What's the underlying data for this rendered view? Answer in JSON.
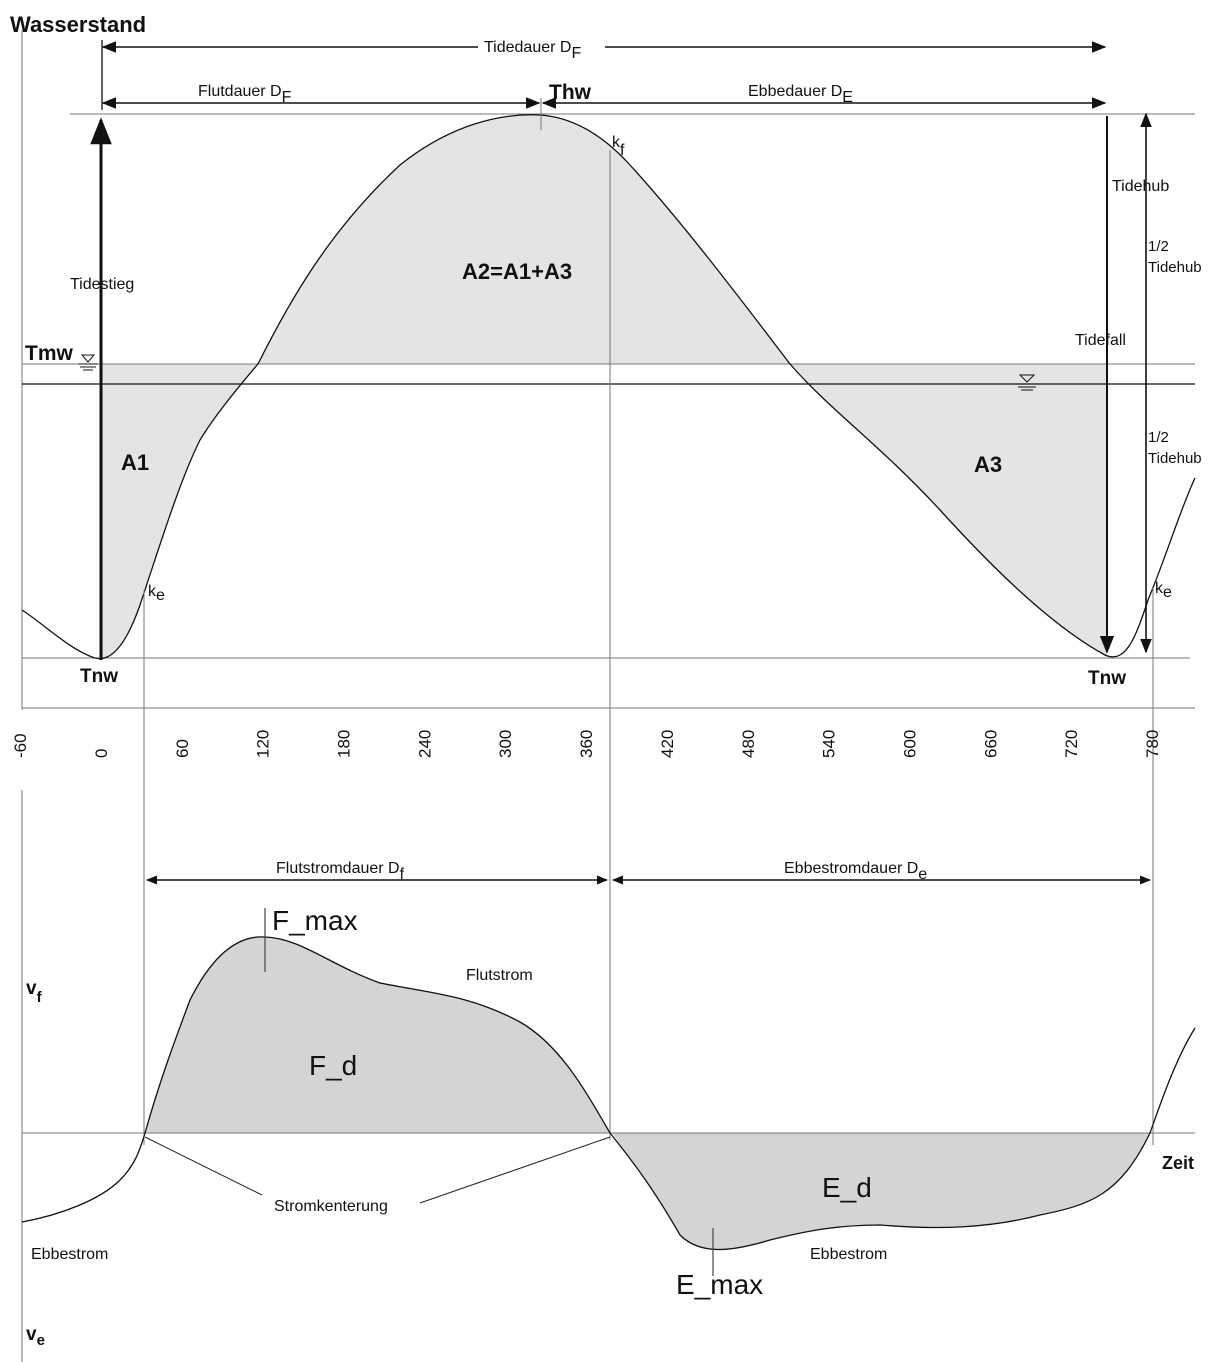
{
  "upper": {
    "title": "Wasserstand",
    "tidedauer": "Tidedauer D",
    "tidedauer_sub": "F",
    "flutdauer": "Flutdauer D",
    "flutdauer_sub": "F",
    "ebbedauer": "Ebbedauer D",
    "ebbedauer_sub": "E",
    "thw": "Thw",
    "kf": "k",
    "kf_sub": "f",
    "ke": "k",
    "ke_sub": "e",
    "tidestieg": "Tidestieg",
    "a2": "A2=A1+A3",
    "tidehub": "Tidehub",
    "half_tidehub_1": "1/2",
    "half_tidehub_2": "Tidehub",
    "tidefall": "Tidefall",
    "tmw": "Tmw",
    "a1": "A1",
    "a3": "A3",
    "tnw": "Tnw"
  },
  "lower": {
    "flutstromdauer": "Flutstromdauer D",
    "flutstromdauer_sub": "f",
    "ebbestromdauer": "Ebbestromdauer D",
    "ebbestromdauer_sub": "e",
    "fmax": "F_max",
    "flutstrom": "Flutstrom",
    "vf": "v",
    "vf_sub": "f",
    "fd": "F_d",
    "zeit": "Zeit",
    "ed": "E_d",
    "stromkenterung": "Stromkenterung",
    "ebbestrom": "Ebbestrom",
    "emax": "E_max",
    "ve": "v",
    "ve_sub": "e"
  },
  "chart_data": {
    "type": "line",
    "x_ticks": [
      -60,
      0,
      60,
      120,
      180,
      240,
      300,
      360,
      420,
      480,
      540,
      600,
      660,
      720,
      780
    ],
    "xlim": [
      -60,
      800
    ]
  }
}
